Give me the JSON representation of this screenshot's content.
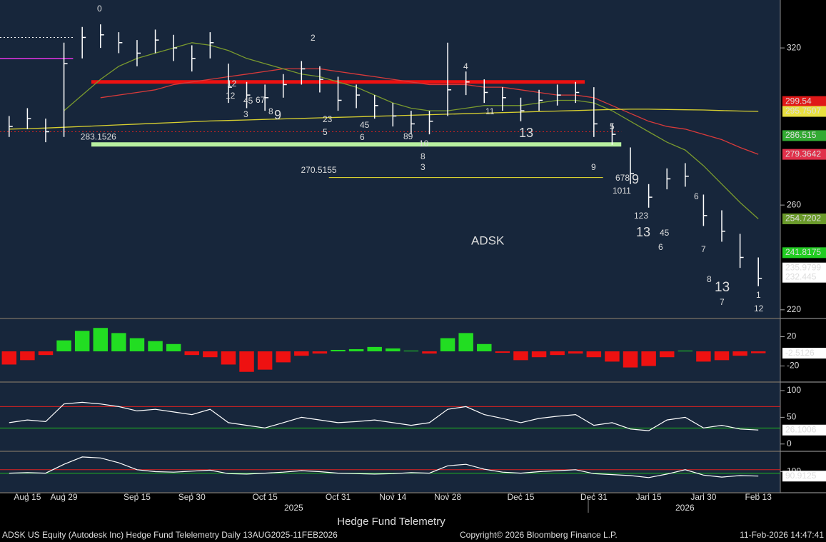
{
  "chart_data": [
    {
      "type": "ohlc",
      "categories": [
        null,
        "Aug 15",
        null,
        "Aug 29",
        null,
        null,
        null,
        "Sep 15",
        null,
        null,
        "Sep 30",
        null,
        null,
        null,
        "Oct 15",
        null,
        null,
        null,
        "Oct 31",
        null,
        null,
        "Nov 14",
        null,
        null,
        "Nov 28",
        null,
        null,
        null,
        "Dec 15",
        null,
        null,
        null,
        "Dec 31",
        null,
        null,
        "Jan 15",
        null,
        null,
        "Jan 30",
        null,
        null,
        "Feb 13"
      ],
      "high": [
        294,
        297,
        293,
        322,
        328,
        329,
        326,
        323,
        327,
        325,
        321,
        326,
        314,
        307,
        306,
        310,
        315,
        313,
        309,
        306,
        302,
        299,
        296,
        296,
        322,
        311,
        308,
        305,
        301,
        304,
        306,
        307,
        305,
        291,
        282,
        268,
        274,
        276,
        264,
        258,
        249,
        240
      ],
      "low": [
        286,
        289,
        284,
        286,
        316,
        320,
        318,
        313,
        318,
        315,
        311,
        316,
        299,
        297,
        296,
        301,
        306,
        303,
        296,
        297,
        293,
        290,
        287,
        287,
        294,
        302,
        299,
        296,
        292,
        296,
        298,
        299,
        286,
        283,
        268,
        259,
        266,
        267,
        252,
        246,
        236,
        229
      ],
      "close": [
        290,
        293,
        288,
        314,
        324,
        325,
        322,
        318,
        323,
        320,
        316,
        322,
        305,
        302,
        301,
        306,
        312,
        308,
        300,
        302,
        298,
        294,
        291,
        292,
        304,
        307,
        303,
        301,
        296,
        300,
        302,
        303,
        291,
        287,
        272,
        263,
        270,
        271,
        256,
        250,
        240,
        232
      ],
      "series": [
        {
          "name": "red-ma",
          "color": "#d93a3a",
          "values": [
            null,
            null,
            null,
            null,
            null,
            301,
            302,
            303,
            304,
            306,
            307,
            308,
            309,
            310,
            311,
            312,
            312,
            312,
            311,
            310,
            309,
            308,
            307,
            306,
            306,
            306,
            305,
            305,
            304,
            303,
            302,
            302,
            301,
            298,
            295,
            292,
            290,
            289,
            287,
            285,
            282,
            279.3642
          ]
        },
        {
          "name": "green-ma",
          "color": "#7a9a2e",
          "values": [
            null,
            null,
            null,
            296,
            302,
            308,
            313,
            316,
            318,
            320,
            322,
            321,
            319,
            316,
            314,
            312,
            310,
            309,
            307,
            305,
            302,
            299,
            297,
            296,
            296,
            297,
            298,
            298,
            298,
            299,
            300,
            300,
            299,
            296,
            292,
            288,
            284,
            281,
            275,
            268,
            261,
            254.7202
          ]
        },
        {
          "name": "yellow-ma",
          "color": "#d8d030",
          "values": [
            289,
            289.2,
            289.4,
            289.7,
            290,
            290.3,
            290.6,
            290.9,
            291.2,
            291.5,
            291.8,
            292.1,
            292.3,
            292.5,
            292.7,
            292.9,
            293.1,
            293.3,
            293.5,
            293.7,
            293.9,
            294.1,
            294.3,
            294.5,
            294.7,
            294.9,
            295.1,
            295.3,
            295.5,
            295.7,
            295.9,
            296.1,
            296.3,
            296.5,
            296.6,
            296.6,
            296.5,
            296.4,
            296.3,
            296.1,
            295.9,
            295.7507
          ]
        }
      ],
      "levels": [
        {
          "value": 307,
          "from": 5,
          "to": 31,
          "color": "#ee1111",
          "width": 5
        },
        {
          "value": 283.1526,
          "label": "283.1526",
          "from": 5,
          "to": 33,
          "color": "#b8f0a0",
          "width": 6
        },
        {
          "value": 270.5155,
          "label": "270.5155",
          "from": 18,
          "to": 32,
          "color": "#d8d030",
          "width": 1.2
        },
        {
          "value": 316,
          "from": 0,
          "to": 3,
          "color": "#dd33dd",
          "width": 1.5
        },
        {
          "value": 324,
          "from": 0,
          "to": 3,
          "color": "#ffffff",
          "width": 1
        },
        {
          "value": 288,
          "from": 0,
          "to": 33,
          "color": "#cc2222",
          "width": 1
        }
      ],
      "ticker": "ADSK",
      "tags": {
        "values": [
          299.54,
          295.7507,
          286.515,
          279.3642,
          254.7202,
          241.8175,
          235.9799,
          232.445
        ],
        "colors": [
          "#e01818",
          "#e8e040",
          "#33aa33",
          "#e0304a",
          "#6a9a2a",
          "#22cc22",
          "#ffffff",
          "#ffffff"
        ]
      },
      "annotations": [
        {
          "text": "0",
          "color": "#f0e040"
        },
        {
          "text": "2",
          "color": "#f0e040"
        },
        {
          "text": "12",
          "color": "#33dd33"
        },
        {
          "text": "45",
          "color": "#33dd33"
        },
        {
          "text": "67",
          "color": "#33dd33"
        },
        {
          "text": "8",
          "color": "#33dd33"
        },
        {
          "text": "9",
          "color": "#33dd33"
        },
        {
          "text": "12",
          "color": "#dd33dd"
        },
        {
          "text": "3",
          "color": "#dd33dd"
        },
        {
          "text": "23",
          "color": "#ee3333"
        },
        {
          "text": "5",
          "color": "#dd33dd"
        },
        {
          "text": "45",
          "color": "#ee3333"
        },
        {
          "text": "6",
          "color": "#dd33dd"
        },
        {
          "text": "89",
          "color": "#ee3333"
        },
        {
          "text": "10",
          "color": "#ee3333"
        },
        {
          "text": "8",
          "color": "#dd33dd"
        },
        {
          "text": "3",
          "color": "#f0e040"
        },
        {
          "text": "4",
          "color": "#f0e040"
        },
        {
          "text": "11",
          "color": "#ee3333"
        },
        {
          "text": "13",
          "color": "#ee3333"
        },
        {
          "text": "5",
          "color": "#33dd33"
        },
        {
          "text": "9",
          "color": "#dd33dd"
        },
        {
          "text": "678",
          "color": "#33dd33"
        },
        {
          "text": "1011",
          "color": "#dd33dd"
        },
        {
          "text": "9",
          "color": "#33dd33"
        },
        {
          "text": "123",
          "color": "#ee3333"
        },
        {
          "text": "13",
          "color": "#dd33dd"
        },
        {
          "text": "45",
          "color": "#ee3333"
        },
        {
          "text": "6",
          "color": "#dd33dd"
        },
        {
          "text": "6",
          "color": "#ee3333"
        },
        {
          "text": "7",
          "color": "#ee3333"
        },
        {
          "text": "8",
          "color": "#ee3333"
        },
        {
          "text": "13",
          "color": "#dd33dd"
        },
        {
          "text": "7",
          "color": "#dd33dd"
        },
        {
          "text": "1",
          "color": "#33dd33"
        },
        {
          "text": "12",
          "color": "#ee3333"
        }
      ],
      "ylim": [
        217.5,
        338.3
      ],
      "yticks": [
        220,
        260,
        320
      ]
    },
    {
      "type": "bar",
      "colors": [
        "#22dd22",
        "#ee1111"
      ],
      "values": [
        -18,
        -12,
        -5,
        15,
        28,
        32,
        25,
        18,
        14,
        10,
        -5,
        -8,
        -18,
        -28,
        -25,
        -15,
        -6,
        -3,
        2,
        3,
        6,
        4,
        1,
        -3,
        18,
        25,
        10,
        -2,
        -12,
        -8,
        -5,
        -3,
        -8,
        -14,
        -22,
        -20,
        -8,
        1,
        -14,
        -12,
        -6,
        -2.5126
      ],
      "ylim": [
        -39,
        41
      ],
      "yticks": [
        20,
        -20
      ]
    },
    {
      "type": "line",
      "color": "#ffffff",
      "values": [
        40,
        45,
        42,
        75,
        78,
        75,
        70,
        62,
        65,
        60,
        55,
        65,
        40,
        35,
        30,
        40,
        50,
        45,
        40,
        42,
        45,
        40,
        35,
        40,
        65,
        70,
        55,
        48,
        40,
        48,
        52,
        55,
        35,
        40,
        28,
        25,
        45,
        50,
        30,
        35,
        28,
        26.1006
      ],
      "hlines": [
        {
          "value": 70,
          "color": "#dd2222"
        },
        {
          "value": 30,
          "color": "#22bb22"
        }
      ],
      "ylim": [
        -11,
        112
      ],
      "yticks": [
        100,
        50,
        0
      ]
    },
    {
      "type": "line",
      "color": "#ffffff",
      "values": [
        97,
        98,
        97,
        115,
        130,
        128,
        118,
        104,
        100,
        99,
        101,
        103,
        96,
        95,
        97,
        99,
        102,
        100,
        97,
        96,
        95,
        96,
        98,
        97,
        112,
        115,
        105,
        99,
        97,
        100,
        102,
        104,
        96,
        94,
        92,
        88,
        95,
        104,
        93,
        89,
        92,
        90.9125
      ],
      "hlines": [
        {
          "value": 104,
          "color": "#dd2222"
        },
        {
          "value": 97,
          "color": "#22bb22"
        }
      ],
      "ylim": [
        60,
        140
      ],
      "yticks": [
        100
      ]
    }
  ],
  "year_labels": [
    "2025",
    "2026"
  ],
  "footer": {
    "center": "Hedge Fund Telemetry",
    "left": "ADSK US Equity (Autodesk Inc) Hedge Fund Telelemetry Daily 13AUG2025-11FEB2026",
    "middle": "Copyright© 2026 Bloomberg Finance L.P.",
    "right": "11-Feb-2026 14:47:41"
  }
}
